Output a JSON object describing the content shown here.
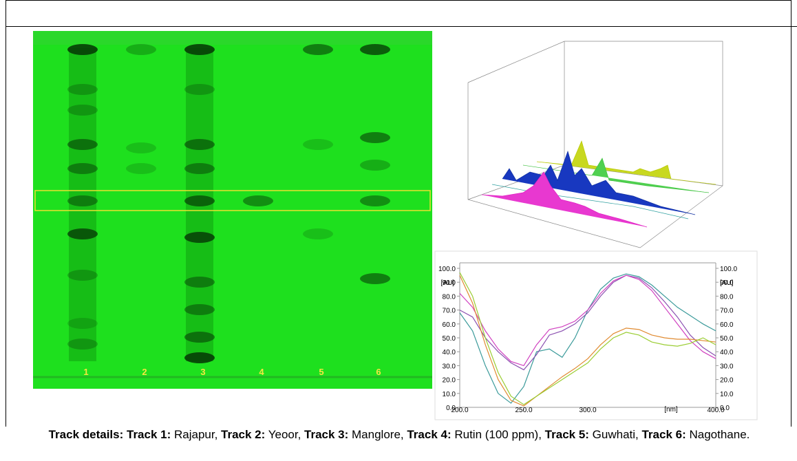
{
  "tlc": {
    "lanes": [
      "1",
      "2",
      "3",
      "4",
      "5",
      "6"
    ]
  },
  "chart_data": {
    "type": "line",
    "x": [
      200,
      210,
      220,
      230,
      240,
      250,
      260,
      270,
      280,
      290,
      300,
      310,
      320,
      330,
      340,
      350,
      360,
      370,
      380,
      390,
      400
    ],
    "series": [
      {
        "color": "#3a9a9a",
        "values": [
          68,
          55,
          30,
          10,
          3,
          15,
          40,
          42,
          36,
          50,
          70,
          85,
          93,
          96,
          94,
          88,
          80,
          72,
          66,
          60,
          55
        ]
      },
      {
        "color": "#8a4fb0",
        "values": [
          70,
          65,
          50,
          40,
          32,
          27,
          38,
          52,
          55,
          60,
          68,
          80,
          90,
          95,
          93,
          86,
          76,
          65,
          52,
          43,
          37
        ]
      },
      {
        "color": "#d040c0",
        "values": [
          82,
          72,
          55,
          42,
          33,
          30,
          45,
          56,
          58,
          62,
          70,
          82,
          91,
          95,
          92,
          84,
          72,
          60,
          48,
          40,
          35
        ]
      },
      {
        "color": "#e08a30",
        "values": [
          95,
          75,
          45,
          20,
          5,
          1,
          8,
          15,
          22,
          28,
          35,
          45,
          53,
          57,
          56,
          52,
          50,
          49,
          49,
          48,
          47
        ]
      },
      {
        "color": "#9acd32",
        "values": [
          97,
          80,
          50,
          25,
          8,
          2,
          8,
          14,
          20,
          26,
          32,
          42,
          50,
          54,
          52,
          47,
          45,
          44,
          46,
          50,
          45
        ]
      }
    ],
    "xlim": [
      200,
      400
    ],
    "ylim": [
      0,
      100
    ],
    "xticks": [
      {
        "value": 200,
        "label": "200.0"
      },
      {
        "value": 250,
        "label": "250.0"
      },
      {
        "value": 300,
        "label": "300.0"
      },
      {
        "value": 400,
        "label": "400.0"
      }
    ],
    "yticks": [
      {
        "value": 0,
        "label": "0.0"
      },
      {
        "value": 10,
        "label": "10.0"
      },
      {
        "value": 20,
        "label": "20.0"
      },
      {
        "value": 30,
        "label": "30.0"
      },
      {
        "value": 40,
        "label": "40.0"
      },
      {
        "value": 50,
        "label": "50.0"
      },
      {
        "value": 60,
        "label": "60.0"
      },
      {
        "value": 70,
        "label": "70.0"
      },
      {
        "value": 80,
        "label": "80.0"
      },
      {
        "value": 90,
        "label": "90.0"
      },
      {
        "value": 100,
        "label": "100.0"
      }
    ],
    "xlabel": "[nm]",
    "ylabel": "[AU]"
  },
  "caption": {
    "parts": [
      "Track details: Track 1:",
      " Rajapur, ",
      "Track 2:",
      " Yeoor, ",
      "Track 3:",
      " Manglore, ",
      "Track 4:",
      " Rutin (100 ppm), ",
      "Track 5:",
      " Guwhati, ",
      "Track 6:",
      " Nagothane."
    ]
  }
}
